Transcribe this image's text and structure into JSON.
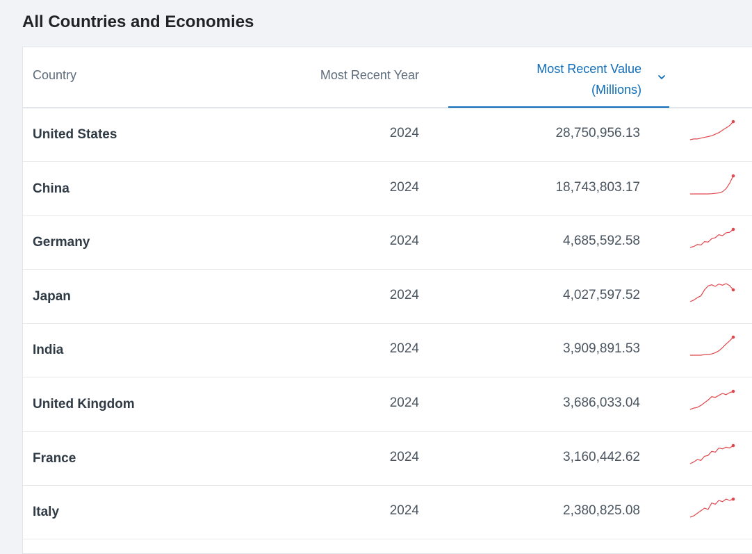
{
  "page": {
    "title": "All Countries and Economies"
  },
  "table": {
    "columns": {
      "country": "Country",
      "year": "Most Recent Year",
      "value_line1": "Most Recent Value",
      "value_line2": "(Millions)"
    },
    "sort_icon": "chevron-down-icon",
    "accent_color": "#0f6cb8",
    "spark_color": "#e0474c",
    "rows": [
      {
        "country": "United States",
        "year": "2024",
        "value": "28,750,956.13",
        "trend": [
          2,
          3,
          3,
          4,
          5,
          6,
          7,
          9,
          11,
          14,
          17,
          20,
          25
        ]
      },
      {
        "country": "China",
        "year": "2024",
        "value": "18,743,803.17",
        "trend": [
          1,
          1,
          1,
          1,
          1,
          1,
          1.2,
          1.5,
          2,
          3,
          6,
          11,
          18
        ]
      },
      {
        "country": "Germany",
        "year": "2024",
        "value": "4,685,592.58",
        "trend": [
          1,
          1.2,
          1.6,
          1.5,
          2.2,
          2.1,
          2.8,
          3,
          3.6,
          3.4,
          4,
          4.1,
          4.7
        ]
      },
      {
        "country": "Japan",
        "year": "2024",
        "value": "4,027,597.52",
        "trend": [
          1,
          1.4,
          2,
          2.5,
          4,
          5,
          5.3,
          4.9,
          5.5,
          5.2,
          5.6,
          5.1,
          4.0
        ]
      },
      {
        "country": "India",
        "year": "2024",
        "value": "3,909,891.53",
        "trend": [
          1,
          1,
          1,
          1,
          1.1,
          1.1,
          1.2,
          1.4,
          1.7,
          2.2,
          2.8,
          3.3,
          3.9
        ]
      },
      {
        "country": "United Kingdom",
        "year": "2024",
        "value": "3,686,033.04",
        "trend": [
          1,
          1.2,
          1.3,
          1.6,
          2,
          2.4,
          2.9,
          2.8,
          3.1,
          3.4,
          3.2,
          3.5,
          3.7
        ]
      },
      {
        "country": "France",
        "year": "2024",
        "value": "3,160,442.62",
        "trend": [
          1,
          1.2,
          1.5,
          1.4,
          1.9,
          2.0,
          2.5,
          2.4,
          2.9,
          2.8,
          3.0,
          2.9,
          3.2
        ]
      },
      {
        "country": "Italy",
        "year": "2024",
        "value": "2,380,825.08",
        "trend": [
          1,
          1.1,
          1.3,
          1.5,
          1.7,
          1.6,
          2.1,
          2.0,
          2.3,
          2.2,
          2.4,
          2.3,
          2.4
        ]
      }
    ]
  }
}
